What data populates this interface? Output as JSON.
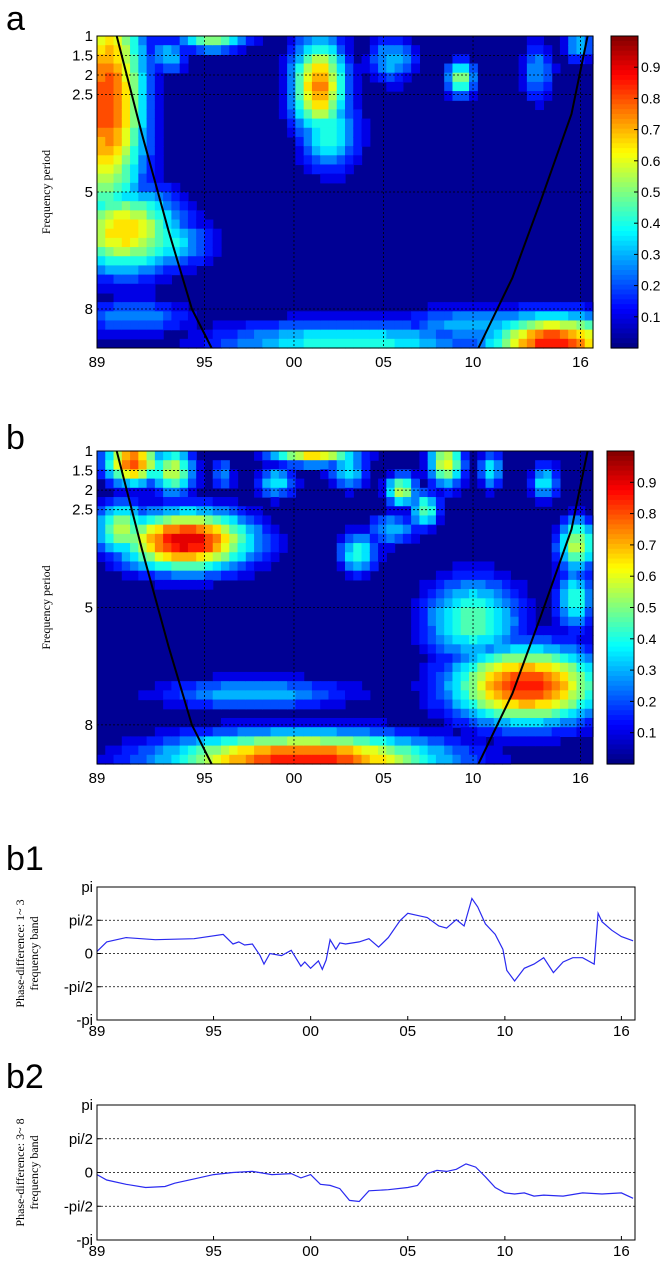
{
  "panels": {
    "a": {
      "label": "a"
    },
    "b": {
      "label": "b"
    },
    "b1": {
      "label": "b1"
    },
    "b2": {
      "label": "b2"
    }
  },
  "chart_data": [
    {
      "id": "a",
      "type": "heatmap",
      "ylabel": "Frequency period",
      "x_tick_labels": [
        "89",
        "95",
        "00",
        "05",
        "10",
        "16"
      ],
      "x_tick_values": [
        1989,
        1995,
        2000,
        2005,
        2010,
        2016
      ],
      "xlim": [
        1989,
        2016.7
      ],
      "y_tick_labels": [
        "1",
        "1.5",
        "2",
        "2.5",
        "5",
        "8"
      ],
      "y_tick_values": [
        1,
        1.5,
        2,
        2.5,
        5,
        8
      ],
      "ylim": [
        1,
        9
      ],
      "y_reversed": true,
      "colorbar": {
        "ticks": [
          "0.1",
          "0.2",
          "0.3",
          "0.4",
          "0.5",
          "0.6",
          "0.7",
          "0.8",
          "0.9"
        ],
        "range": [
          0,
          1
        ]
      },
      "blobs": [
        {
          "x": 1989.6,
          "y": 2.7,
          "sx": 1.5,
          "sy": 2.2,
          "v": 0.85
        },
        {
          "x": 1990.5,
          "y": 6.0,
          "sx": 2.3,
          "sy": 0.8,
          "v": 0.7
        },
        {
          "x": 1992.5,
          "y": 6.3,
          "sx": 2.0,
          "sy": 0.5,
          "v": 0.45
        },
        {
          "x": 1993.0,
          "y": 1.5,
          "sx": 0.8,
          "sy": 0.35,
          "v": 0.35
        },
        {
          "x": 1995.5,
          "y": 1.05,
          "sx": 1.4,
          "sy": 0.25,
          "v": 0.55
        },
        {
          "x": 2001.4,
          "y": 2.3,
          "sx": 1.1,
          "sy": 0.9,
          "v": 0.78
        },
        {
          "x": 2002.0,
          "y": 3.5,
          "sx": 1.2,
          "sy": 0.7,
          "v": 0.45
        },
        {
          "x": 2005.5,
          "y": 1.6,
          "sx": 1.0,
          "sy": 0.45,
          "v": 0.35
        },
        {
          "x": 2009.3,
          "y": 2.1,
          "sx": 0.6,
          "sy": 0.35,
          "v": 0.55
        },
        {
          "x": 2013.6,
          "y": 1.9,
          "sx": 0.7,
          "sy": 0.6,
          "v": 0.3
        },
        {
          "x": 2015.9,
          "y": 1.2,
          "sx": 0.6,
          "sy": 0.35,
          "v": 0.35
        },
        {
          "x": 2003.0,
          "y": 8.9,
          "sx": 5.5,
          "sy": 0.45,
          "v": 0.45
        },
        {
          "x": 2014.5,
          "y": 8.9,
          "sx": 2.6,
          "sy": 0.55,
          "v": 0.9
        },
        {
          "x": 2010.5,
          "y": 8.4,
          "sx": 3.5,
          "sy": 0.35,
          "v": 0.35
        },
        {
          "x": 1991.0,
          "y": 8.2,
          "sx": 2.5,
          "sy": 0.35,
          "v": 0.3
        }
      ],
      "coi_left": [
        [
          1990.1,
          1
        ],
        [
          1991.5,
          3.5
        ],
        [
          1993.0,
          6.0
        ],
        [
          1994.3,
          8.0
        ],
        [
          1995.4,
          9.0
        ]
      ],
      "coi_right": [
        [
          2010.3,
          9.0
        ],
        [
          2012.2,
          7.2
        ],
        [
          2013.8,
          5.2
        ],
        [
          2015.5,
          3.0
        ],
        [
          2016.4,
          1
        ]
      ]
    },
    {
      "id": "b",
      "type": "heatmap",
      "ylabel": "Frequency period",
      "x_tick_labels": [
        "89",
        "95",
        "00",
        "05",
        "10",
        "16"
      ],
      "x_tick_values": [
        1989,
        1995,
        2000,
        2005,
        2010,
        2016
      ],
      "xlim": [
        1989,
        2016.7
      ],
      "y_tick_labels": [
        "1",
        "1.5",
        "2",
        "2.5",
        "5",
        "8"
      ],
      "y_tick_values": [
        1,
        1.5,
        2,
        2.5,
        5,
        8
      ],
      "ylim": [
        1,
        9
      ],
      "y_reversed": true,
      "colorbar": {
        "ticks": [
          "0.1",
          "0.2",
          "0.3",
          "0.4",
          "0.5",
          "0.6",
          "0.7",
          "0.8",
          "0.9"
        ],
        "range": [
          0,
          1
        ]
      },
      "blobs": [
        {
          "x": 1994.0,
          "y": 3.3,
          "sx": 2.6,
          "sy": 0.55,
          "v": 0.95
        },
        {
          "x": 1991.0,
          "y": 1.3,
          "sx": 1.1,
          "sy": 0.4,
          "v": 0.85
        },
        {
          "x": 1993.2,
          "y": 1.5,
          "sx": 0.9,
          "sy": 0.45,
          "v": 0.6
        },
        {
          "x": 1990.4,
          "y": 3.0,
          "sx": 1.1,
          "sy": 0.5,
          "v": 0.6
        },
        {
          "x": 2001.2,
          "y": 1.0,
          "sx": 1.8,
          "sy": 0.25,
          "v": 0.75
        },
        {
          "x": 1996.0,
          "y": 1.6,
          "sx": 0.5,
          "sy": 0.3,
          "v": 0.3
        },
        {
          "x": 1999.0,
          "y": 1.8,
          "sx": 0.8,
          "sy": 0.3,
          "v": 0.4
        },
        {
          "x": 2003.0,
          "y": 1.5,
          "sx": 0.8,
          "sy": 0.35,
          "v": 0.4
        },
        {
          "x": 2006.0,
          "y": 2.0,
          "sx": 0.6,
          "sy": 0.3,
          "v": 0.6
        },
        {
          "x": 2007.3,
          "y": 2.5,
          "sx": 0.6,
          "sy": 0.35,
          "v": 0.5
        },
        {
          "x": 2008.5,
          "y": 1.3,
          "sx": 0.7,
          "sy": 0.45,
          "v": 0.65
        },
        {
          "x": 2011.0,
          "y": 1.5,
          "sx": 0.5,
          "sy": 0.35,
          "v": 0.4
        },
        {
          "x": 2003.6,
          "y": 3.6,
          "sx": 0.8,
          "sy": 0.4,
          "v": 0.45
        },
        {
          "x": 2005.5,
          "y": 3.0,
          "sx": 1.0,
          "sy": 0.3,
          "v": 0.35
        },
        {
          "x": 2013.0,
          "y": 7.0,
          "sx": 3.0,
          "sy": 0.7,
          "v": 0.9
        },
        {
          "x": 2010.0,
          "y": 5.3,
          "sx": 2.0,
          "sy": 0.8,
          "v": 0.5
        },
        {
          "x": 2015.8,
          "y": 3.4,
          "sx": 0.8,
          "sy": 0.5,
          "v": 0.6
        },
        {
          "x": 2015.7,
          "y": 4.8,
          "sx": 0.8,
          "sy": 0.6,
          "v": 0.45
        },
        {
          "x": 2000.5,
          "y": 8.9,
          "sx": 5.5,
          "sy": 0.5,
          "v": 0.9
        },
        {
          "x": 1997.8,
          "y": 7.2,
          "sx": 4.0,
          "sy": 0.3,
          "v": 0.35
        },
        {
          "x": 2014.0,
          "y": 1.8,
          "sx": 0.6,
          "sy": 0.35,
          "v": 0.4
        }
      ],
      "coi_left": [
        [
          1990.1,
          1
        ],
        [
          1991.5,
          3.5
        ],
        [
          1993.0,
          6.0
        ],
        [
          1994.3,
          8.0
        ],
        [
          1995.4,
          9.0
        ]
      ],
      "coi_right": [
        [
          2010.3,
          9.0
        ],
        [
          2012.2,
          7.2
        ],
        [
          2013.8,
          5.2
        ],
        [
          2015.5,
          3.0
        ],
        [
          2016.4,
          1
        ]
      ]
    },
    {
      "id": "b1",
      "type": "line",
      "ylabel_lines": [
        "Phase-difference: 1~ 3",
        "frequency band"
      ],
      "x_tick_labels": [
        "89",
        "95",
        "00",
        "05",
        "10",
        "16"
      ],
      "x_tick_values": [
        1989,
        1995,
        2000,
        2005,
        2010,
        2016
      ],
      "xlim": [
        1989,
        2016.7
      ],
      "y_tick_labels": [
        "pi",
        "pi/2",
        "0",
        "-pi/2",
        "-pi"
      ],
      "y_tick_values": [
        3.1416,
        1.5708,
        0,
        -1.5708,
        -3.1416
      ],
      "ylim": [
        -3.1416,
        3.1416
      ],
      "dotted_gridlines_at": [
        1.5708,
        0,
        -1.5708
      ],
      "series": [
        {
          "color": "#2a2af0",
          "x": [
            1989.0,
            1989.5,
            1990.5,
            1992.0,
            1994.0,
            1995.5,
            1996.0,
            1996.3,
            1996.6,
            1997.0,
            1997.4,
            1997.6,
            1997.9,
            1998.5,
            1999.0,
            1999.5,
            1999.7,
            2000.0,
            2000.4,
            2000.6,
            2000.8,
            2001.0,
            2001.3,
            2001.5,
            2001.8,
            2002.5,
            2003.0,
            2003.5,
            2004.0,
            2004.6,
            2005.0,
            2005.5,
            2006.0,
            2006.6,
            2007.0,
            2007.5,
            2007.9,
            2008.3,
            2008.6,
            2009.0,
            2009.5,
            2009.9,
            2010.1,
            2010.5,
            2011.0,
            2011.5,
            2012.0,
            2012.5,
            2013.0,
            2013.5,
            2014.0,
            2014.6,
            2014.8,
            2015.0,
            2015.5,
            2016.0,
            2016.6
          ],
          "y": [
            0.1,
            0.55,
            0.75,
            0.65,
            0.7,
            0.9,
            0.45,
            0.55,
            0.4,
            0.45,
            -0.1,
            -0.5,
            0.0,
            -0.1,
            0.15,
            -0.6,
            -0.4,
            -0.7,
            -0.35,
            -0.75,
            -0.3,
            0.65,
            0.2,
            0.5,
            0.45,
            0.55,
            0.7,
            0.3,
            0.75,
            1.55,
            1.9,
            1.8,
            1.7,
            1.3,
            1.2,
            1.6,
            1.3,
            2.6,
            2.2,
            1.4,
            0.9,
            0.2,
            -0.8,
            -1.3,
            -0.7,
            -0.5,
            -0.2,
            -0.9,
            -0.4,
            -0.2,
            -0.2,
            -0.5,
            1.9,
            1.5,
            1.1,
            0.8,
            0.6
          ]
        }
      ]
    },
    {
      "id": "b2",
      "type": "line",
      "ylabel_lines": [
        "Phase-difference: 3~ 8",
        "frequency band"
      ],
      "x_tick_labels": [
        "89",
        "95",
        "00",
        "05",
        "10",
        "16"
      ],
      "x_tick_values": [
        1989,
        1995,
        2000,
        2005,
        2010,
        2016
      ],
      "xlim": [
        1989,
        2016.7
      ],
      "y_tick_labels": [
        "pi",
        "pi/2",
        "0",
        "-pi/2",
        "-pi"
      ],
      "y_tick_values": [
        3.1416,
        1.5708,
        0,
        -1.5708,
        -3.1416
      ],
      "ylim": [
        -3.1416,
        3.1416
      ],
      "dotted_gridlines_at": [
        1.5708,
        0,
        -1.5708
      ],
      "series": [
        {
          "color": "#2a2af0",
          "x": [
            1989.0,
            1989.5,
            1990.5,
            1991.5,
            1992.5,
            1993.0,
            1994.0,
            1995.0,
            1996.0,
            1997.0,
            1998.0,
            1999.0,
            1999.5,
            2000.0,
            2000.5,
            2001.0,
            2001.5,
            2002.0,
            2002.5,
            2003.0,
            2004.0,
            2005.0,
            2005.5,
            2006.0,
            2006.5,
            2007.0,
            2007.5,
            2008.0,
            2008.5,
            2009.0,
            2009.5,
            2010.0,
            2010.5,
            2011.0,
            2011.5,
            2012.0,
            2013.0,
            2014.0,
            2015.0,
            2016.0,
            2016.6
          ],
          "y": [
            -0.1,
            -0.35,
            -0.55,
            -0.7,
            -0.65,
            -0.5,
            -0.3,
            -0.1,
            0.0,
            0.05,
            -0.1,
            -0.05,
            -0.25,
            -0.1,
            -0.55,
            -0.6,
            -0.75,
            -1.3,
            -1.35,
            -0.85,
            -0.8,
            -0.7,
            -0.6,
            -0.05,
            0.1,
            0.05,
            0.15,
            0.4,
            0.25,
            -0.2,
            -0.7,
            -0.95,
            -1.0,
            -0.95,
            -1.1,
            -1.05,
            -1.1,
            -0.95,
            -1.0,
            -0.95,
            -1.2
          ]
        }
      ]
    }
  ]
}
